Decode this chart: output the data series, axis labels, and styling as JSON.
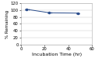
{
  "x_data": [
    5,
    24,
    48
  ],
  "y_data": [
    102,
    92,
    91
  ],
  "xerr": [
    1.5,
    1.5,
    1.5
  ],
  "yerr": [
    2.5,
    2.0,
    2.0
  ],
  "xlim": [
    0,
    60
  ],
  "ylim": [
    0,
    120
  ],
  "yticks": [
    0,
    20,
    40,
    60,
    80,
    100,
    120
  ],
  "xticks": [
    0,
    20,
    40,
    60
  ],
  "xlabel": "Incubation Time (hr)",
  "ylabel": "% Remaining",
  "line_color": "#2b4d8c",
  "grid_color": "#cccccc",
  "background_color": "#ffffff",
  "xlabel_fontsize": 4.5,
  "ylabel_fontsize": 4.0,
  "tick_fontsize": 3.8
}
